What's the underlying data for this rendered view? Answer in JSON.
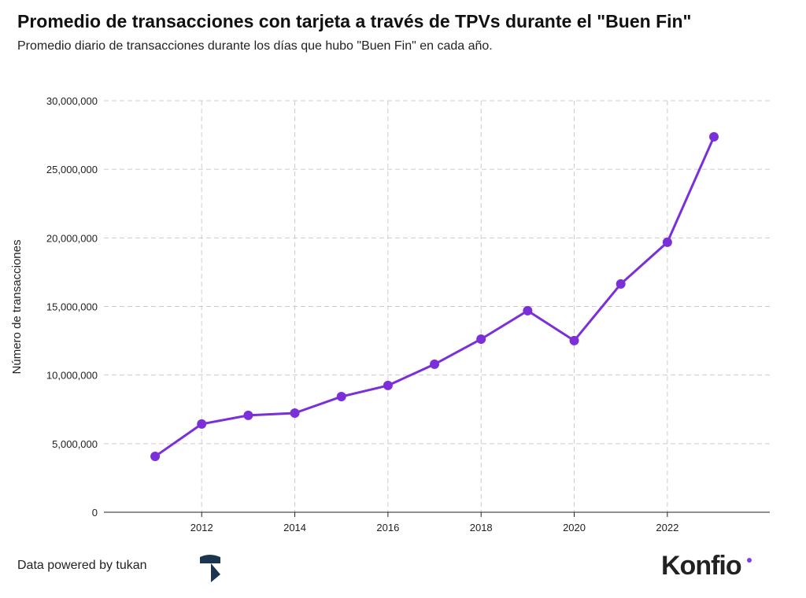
{
  "chart_data": {
    "type": "line",
    "title": "Promedio de transacciones con tarjeta a través de TPVs durante el \"Buen Fin\"",
    "subtitle": "Promedio diario de transacciones durante los días que hubo \"Buen Fin\" en cada año.",
    "xlabel": "",
    "ylabel": "Número de transacciones",
    "x": [
      2011,
      2012,
      2013,
      2014,
      2015,
      2016,
      2017,
      2018,
      2019,
      2020,
      2021,
      2022,
      2023
    ],
    "values": [
      4070000,
      6430000,
      7060000,
      7230000,
      8430000,
      9240000,
      10790000,
      12620000,
      14690000,
      12510000,
      16640000,
      19680000,
      27370000
    ],
    "xlim": [
      2009.9,
      2024.2
    ],
    "ylim": [
      0,
      30000000
    ],
    "x_ticks": [
      "2012",
      "2014",
      "2016",
      "2018",
      "2020",
      "2022"
    ],
    "y_ticks": [
      "0",
      "5,000,000",
      "10,000,000",
      "15,000,000",
      "20,000,000",
      "25,000,000",
      "30,000,000"
    ],
    "grid": true,
    "line_color": "#7b2fd8"
  },
  "footer": {
    "source": "Data powered by tukan",
    "brand": "Konfio"
  }
}
